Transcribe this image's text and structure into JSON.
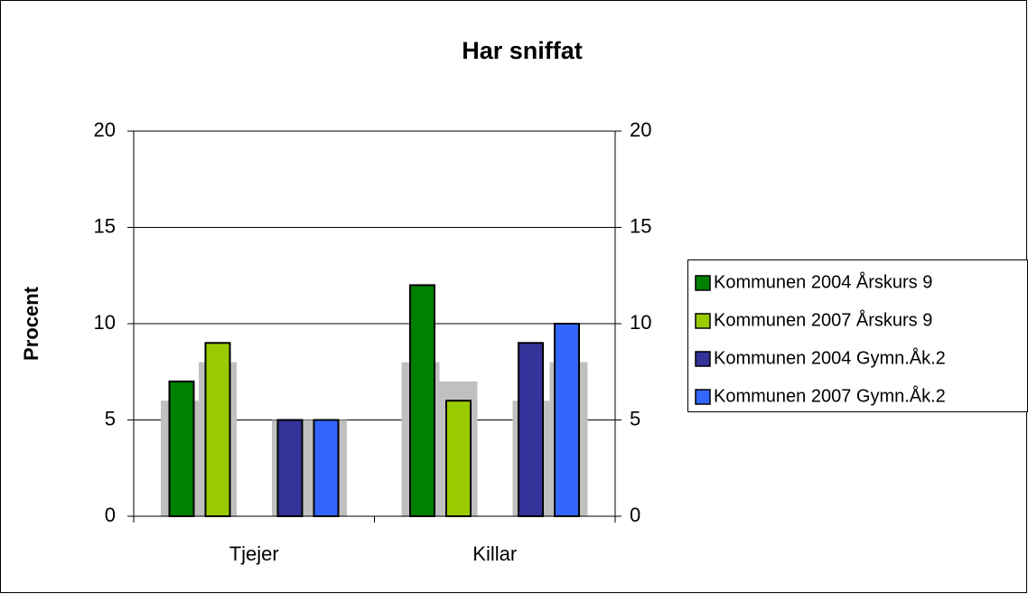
{
  "chart_data": {
    "type": "bar",
    "title": "Har sniffat",
    "y_label": "Procent",
    "categories": [
      "Tjejer",
      "Killar"
    ],
    "series": [
      {
        "name": "Kommunen 2004 Årskurs 9",
        "color": "#008000",
        "values": [
          7,
          12
        ]
      },
      {
        "name": "Kommunen 2007 Årskurs 9",
        "color": "#99cc00",
        "values": [
          9,
          6
        ]
      },
      {
        "name": "Kommunen 2004 Gymn.Åk.2",
        "color": "#333399",
        "values": [
          5,
          9
        ]
      },
      {
        "name": "Kommunen 2007 Gymn.Åk.2",
        "color": "#3366ff",
        "values": [
          5,
          10
        ]
      }
    ],
    "background_series": [
      {
        "color": "#c0c0c0",
        "values": [
          6,
          8
        ]
      },
      {
        "color": "#c0c0c0",
        "values": [
          8,
          7
        ]
      },
      {
        "color": "#c0c0c0",
        "values": [
          5,
          6
        ]
      },
      {
        "color": "#c0c0c0",
        "values": [
          5,
          8
        ]
      }
    ],
    "ylim": [
      0,
      20
    ],
    "yticks": [
      0,
      5,
      10,
      15,
      20
    ],
    "y2lim": [
      0,
      20
    ],
    "y2ticks": [
      0,
      5,
      10,
      15,
      20
    ],
    "grid": true,
    "legend": "right"
  }
}
